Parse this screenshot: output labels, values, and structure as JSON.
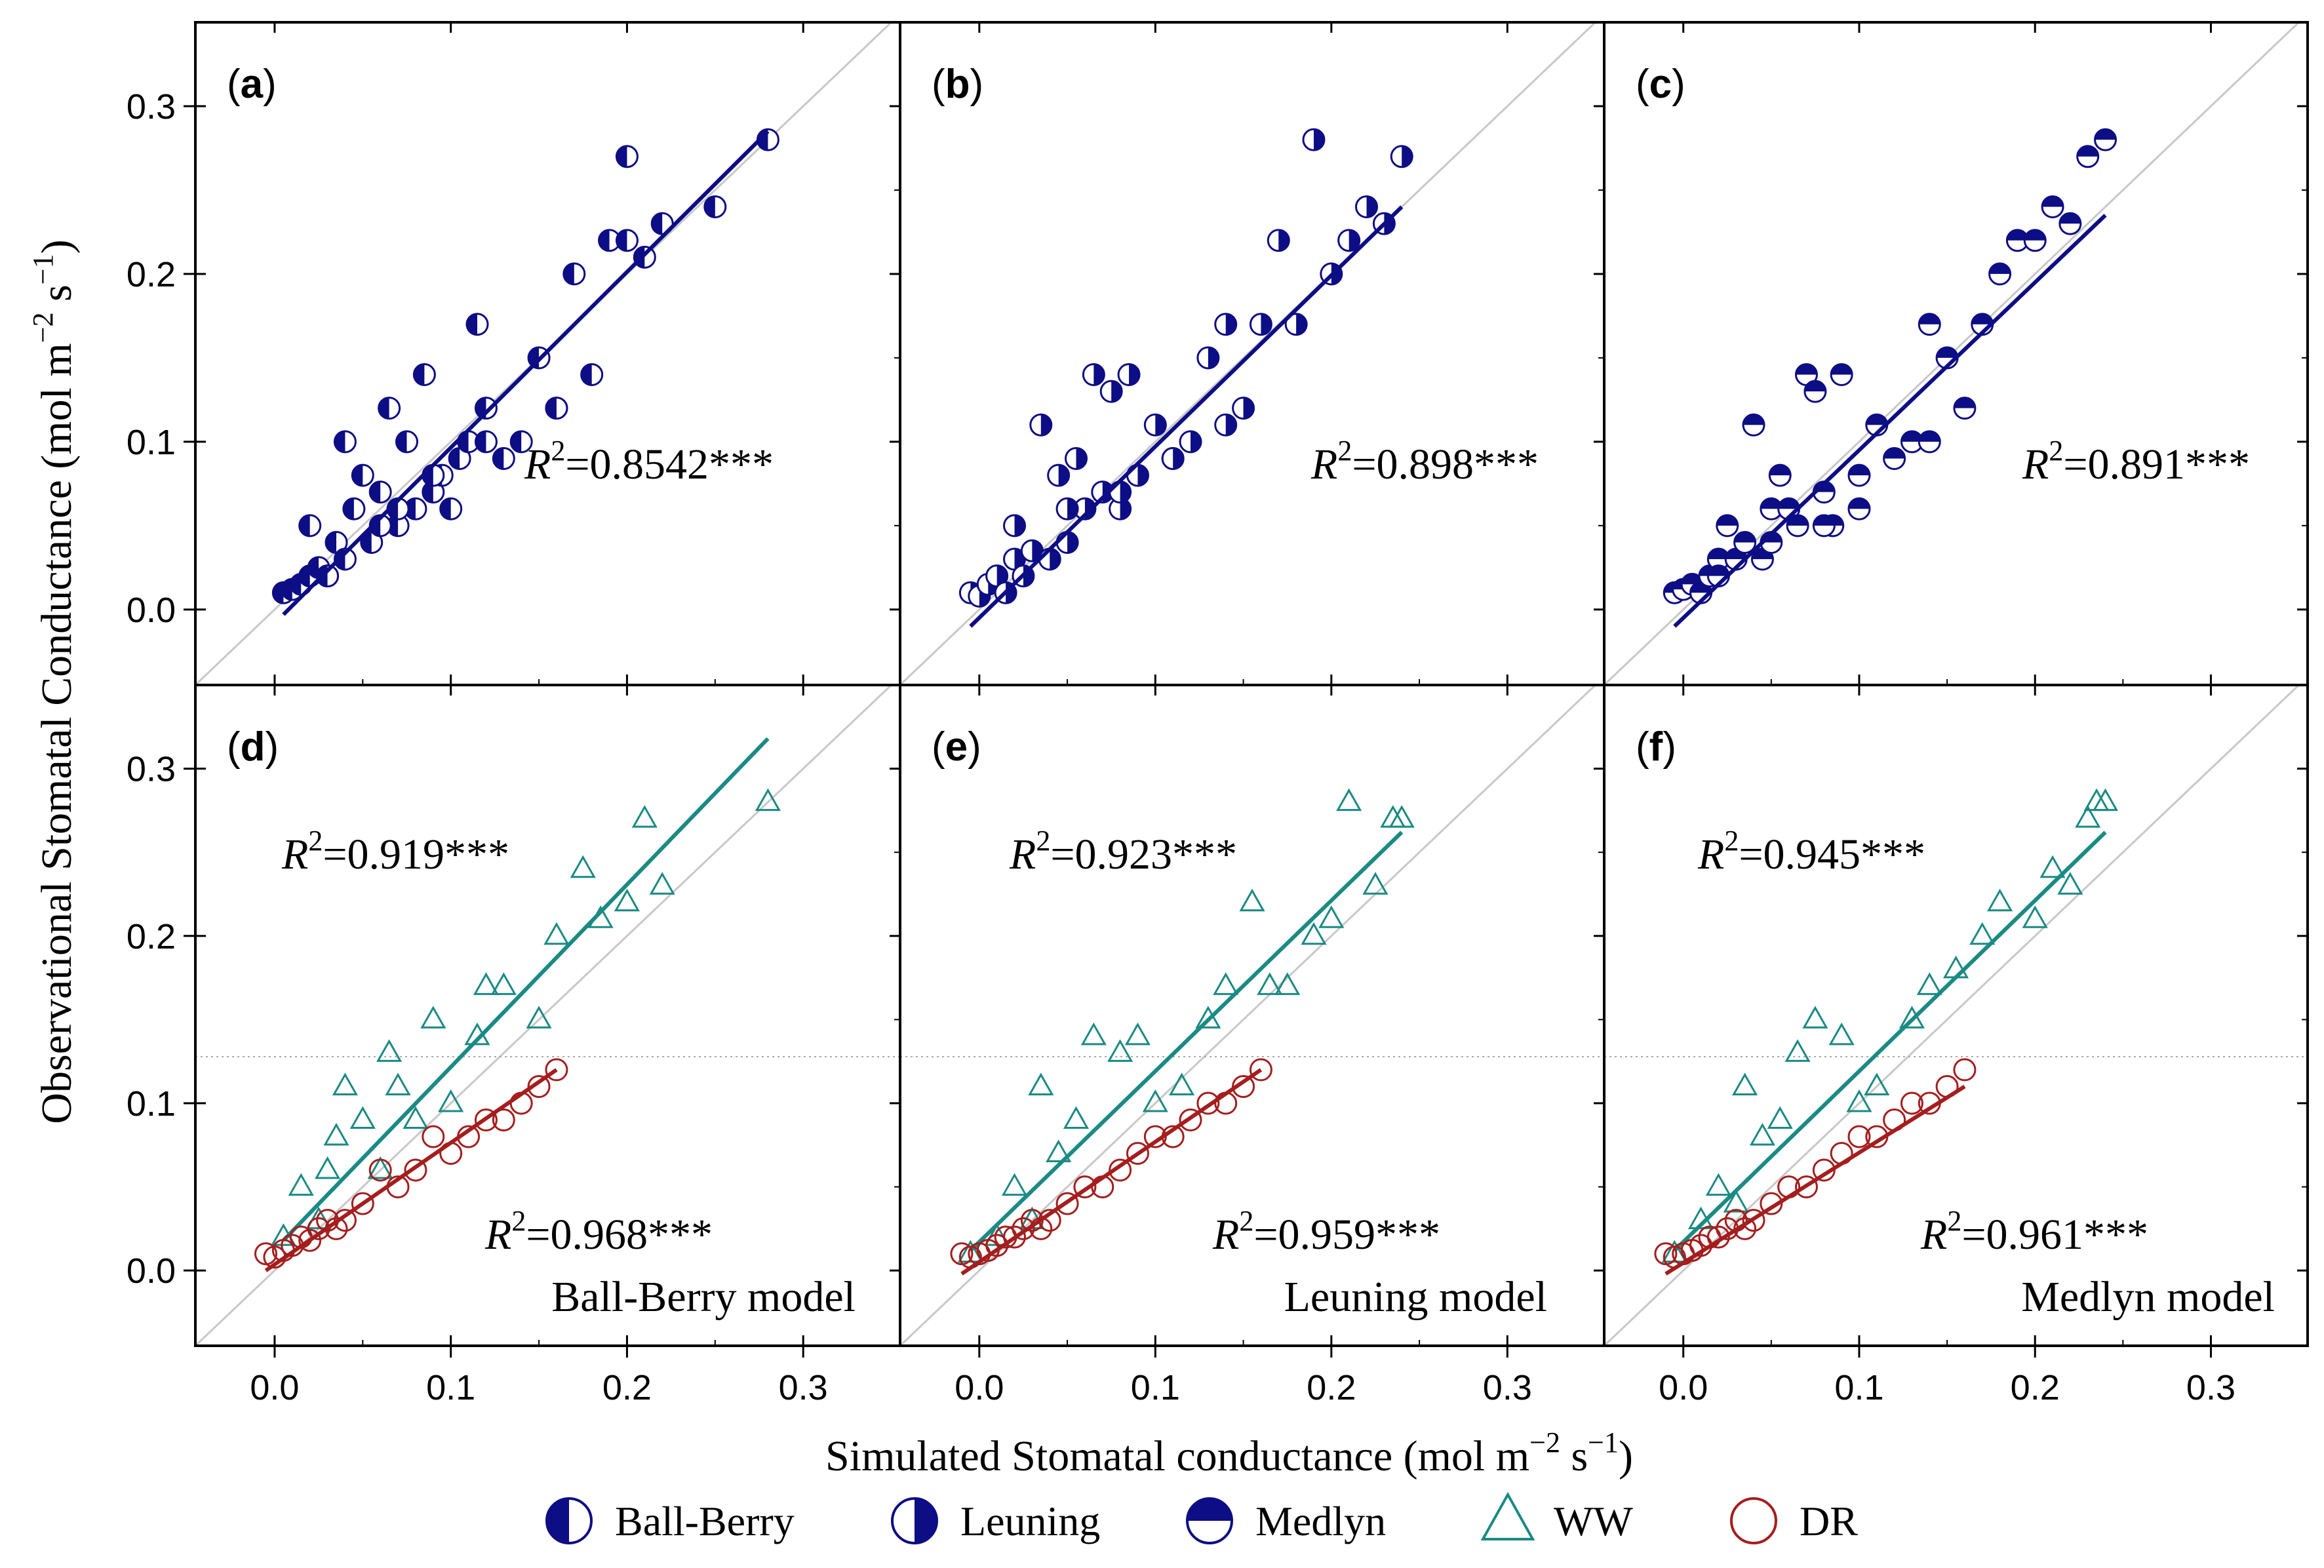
{
  "figure": {
    "y_axis_label_main": "Observational Stomatal Conductance (mol m",
    "y_axis_label_exp1": "−2",
    "y_axis_label_mid": " s",
    "y_axis_label_exp2": "−1",
    "y_axis_label_end": ")",
    "x_axis_label_main": "Simulated Stomatal conductance (mol m",
    "x_axis_label_exp1": "−2",
    "x_axis_label_mid": " s",
    "x_axis_label_exp2": "−1",
    "x_axis_label_end": ")",
    "x_tick_labels": [
      "0.0",
      "0.1",
      "0.2",
      "0.3"
    ],
    "y_tick_labels": [
      "0.0",
      "0.1",
      "0.2",
      "0.3"
    ],
    "legend": [
      {
        "label": "Ball-Berry",
        "marker": "circle-left-filled"
      },
      {
        "label": "Leuning",
        "marker": "circle-right-filled"
      },
      {
        "label": "Medlyn",
        "marker": "circle-top-filled"
      },
      {
        "label": "WW",
        "marker": "open-triangle"
      },
      {
        "label": "DR",
        "marker": "open-circle"
      }
    ],
    "colors": {
      "navy": "#0d0d85",
      "teal": "#1a8a84",
      "darkred": "#a51d1d",
      "one_to_one": "#c8c8c8",
      "frame": "#000000"
    }
  },
  "chart_data": [
    {
      "type": "scatter",
      "panel": "(a)",
      "marker": "circle-left-filled",
      "xlim": [
        -0.045,
        0.355
      ],
      "ylim": [
        -0.045,
        0.35
      ],
      "annotations": [
        {
          "text": "R",
          "sup": "2",
          "value": "=0.8542***",
          "color": "navy"
        }
      ],
      "series": [
        {
          "name": "all",
          "color": "navy",
          "fit": [
            -0.003,
            0.285
          ],
          "x": [
            0.005,
            0.01,
            0.015,
            0.02,
            0.025,
            0.03,
            0.02,
            0.035,
            0.04,
            0.045,
            0.05,
            0.055,
            0.06,
            0.065,
            0.07,
            0.075,
            0.08,
            0.085,
            0.09,
            0.095,
            0.1,
            0.105,
            0.11,
            0.115,
            0.12,
            0.13,
            0.14,
            0.15,
            0.16,
            0.17,
            0.18,
            0.19,
            0.2,
            0.21,
            0.22,
            0.25,
            0.28,
            0.03,
            0.04,
            0.06,
            0.07,
            0.09,
            0.12,
            0.16,
            0.2
          ],
          "y": [
            0.01,
            0.012,
            0.015,
            0.02,
            0.025,
            0.02,
            0.05,
            0.04,
            0.1,
            0.06,
            0.08,
            0.04,
            0.07,
            0.12,
            0.05,
            0.1,
            0.06,
            0.14,
            0.07,
            0.08,
            0.06,
            0.09,
            0.1,
            0.17,
            0.12,
            0.09,
            0.1,
            0.15,
            0.12,
            0.2,
            0.14,
            0.22,
            0.22,
            0.21,
            0.23,
            0.24,
            0.28,
            0.02,
            0.03,
            0.05,
            0.06,
            0.08,
            0.1,
            0.12,
            0.27
          ]
        }
      ]
    },
    {
      "type": "scatter",
      "panel": "(b)",
      "marker": "circle-right-filled",
      "xlim": [
        -0.045,
        0.355
      ],
      "ylim": [
        -0.045,
        0.35
      ],
      "annotations": [
        {
          "text": "R",
          "sup": "2",
          "value": "=0.898***",
          "color": "navy"
        }
      ],
      "series": [
        {
          "name": "all",
          "color": "navy",
          "fit": [
            -0.01,
            0.24
          ],
          "x": [
            -0.005,
            0.0,
            0.005,
            0.01,
            0.015,
            0.02,
            0.025,
            0.03,
            0.035,
            0.04,
            0.045,
            0.05,
            0.055,
            0.06,
            0.065,
            0.07,
            0.075,
            0.08,
            0.085,
            0.09,
            0.1,
            0.11,
            0.12,
            0.13,
            0.14,
            0.15,
            0.16,
            0.17,
            0.18,
            0.2,
            0.21,
            0.22,
            0.23,
            0.24,
            0.02,
            0.05,
            0.08,
            0.11,
            0.14,
            0.19
          ],
          "y": [
            0.01,
            0.008,
            0.015,
            0.02,
            0.01,
            0.03,
            0.02,
            0.035,
            0.11,
            0.03,
            0.08,
            0.04,
            0.09,
            0.06,
            0.14,
            0.07,
            0.13,
            0.06,
            0.14,
            0.08,
            0.11,
            0.09,
            0.1,
            0.15,
            0.17,
            0.12,
            0.17,
            0.22,
            0.17,
            0.2,
            0.22,
            0.24,
            0.23,
            0.27,
            0.05,
            0.06,
            0.07,
            0.09,
            0.11,
            0.28
          ]
        }
      ]
    },
    {
      "type": "scatter",
      "panel": "(c)",
      "marker": "circle-top-filled",
      "xlim": [
        -0.045,
        0.355
      ],
      "ylim": [
        -0.045,
        0.35
      ],
      "annotations": [
        {
          "text": "R",
          "sup": "2",
          "value": "=0.891***",
          "color": "navy"
        }
      ],
      "series": [
        {
          "name": "all",
          "color": "navy",
          "fit": [
            -0.01,
            0.235
          ],
          "x": [
            -0.005,
            0.0,
            0.005,
            0.01,
            0.015,
            0.02,
            0.025,
            0.03,
            0.035,
            0.04,
            0.045,
            0.05,
            0.055,
            0.06,
            0.065,
            0.07,
            0.075,
            0.08,
            0.085,
            0.09,
            0.1,
            0.11,
            0.12,
            0.13,
            0.14,
            0.15,
            0.16,
            0.17,
            0.18,
            0.19,
            0.2,
            0.21,
            0.22,
            0.23,
            0.24,
            0.02,
            0.05,
            0.08,
            0.1,
            0.14
          ],
          "y": [
            0.01,
            0.012,
            0.015,
            0.01,
            0.02,
            0.03,
            0.05,
            0.03,
            0.04,
            0.11,
            0.03,
            0.06,
            0.08,
            0.06,
            0.05,
            0.14,
            0.13,
            0.07,
            0.05,
            0.14,
            0.06,
            0.11,
            0.09,
            0.1,
            0.17,
            0.15,
            0.12,
            0.17,
            0.2,
            0.22,
            0.22,
            0.24,
            0.23,
            0.27,
            0.28,
            0.02,
            0.04,
            0.05,
            0.08,
            0.1
          ]
        }
      ]
    },
    {
      "type": "scatter",
      "panel": "(d)",
      "xlim": [
        -0.045,
        0.355
      ],
      "ylim": [
        -0.045,
        0.35
      ],
      "annotations": [
        {
          "text": "R",
          "sup": "2",
          "value": "=0.919***",
          "color": "teal"
        },
        {
          "text": "R",
          "sup": "2",
          "value": "=0.968***",
          "color": "darkred"
        },
        {
          "text": "Ball-Berry model"
        }
      ],
      "series": [
        {
          "name": "WW",
          "marker": "open-triangle",
          "color": "teal",
          "fit": [
            0.018,
            0.318
          ],
          "x": [
            0.005,
            0.015,
            0.025,
            0.03,
            0.035,
            0.04,
            0.05,
            0.06,
            0.065,
            0.07,
            0.08,
            0.09,
            0.1,
            0.115,
            0.12,
            0.13,
            0.15,
            0.16,
            0.175,
            0.185,
            0.2,
            0.21,
            0.22,
            0.28
          ],
          "y": [
            0.02,
            0.05,
            0.03,
            0.06,
            0.08,
            0.11,
            0.09,
            0.06,
            0.13,
            0.11,
            0.09,
            0.15,
            0.1,
            0.14,
            0.17,
            0.17,
            0.15,
            0.2,
            0.24,
            0.21,
            0.22,
            0.27,
            0.23,
            0.28
          ]
        },
        {
          "name": "DR",
          "marker": "open-circle",
          "color": "darkred",
          "fit": [
            0.0,
            0.12
          ],
          "x": [
            -0.005,
            0.0,
            0.005,
            0.01,
            0.015,
            0.02,
            0.025,
            0.03,
            0.035,
            0.04,
            0.05,
            0.06,
            0.07,
            0.08,
            0.09,
            0.1,
            0.11,
            0.12,
            0.13,
            0.14,
            0.15,
            0.16
          ],
          "y": [
            0.01,
            0.008,
            0.012,
            0.015,
            0.02,
            0.018,
            0.025,
            0.03,
            0.025,
            0.03,
            0.04,
            0.06,
            0.05,
            0.06,
            0.08,
            0.07,
            0.08,
            0.09,
            0.09,
            0.1,
            0.11,
            0.12
          ]
        }
      ]
    },
    {
      "type": "scatter",
      "panel": "(e)",
      "xlim": [
        -0.045,
        0.355
      ],
      "ylim": [
        -0.045,
        0.35
      ],
      "annotations": [
        {
          "text": "R",
          "sup": "2",
          "value": "=0.923***",
          "color": "teal"
        },
        {
          "text": "R",
          "sup": "2",
          "value": "=0.959***",
          "color": "darkred"
        },
        {
          "text": "Leuning model"
        }
      ],
      "series": [
        {
          "name": "WW",
          "marker": "open-triangle",
          "color": "teal",
          "fit": [
            0.012,
            0.262
          ],
          "x": [
            -0.005,
            0.01,
            0.02,
            0.03,
            0.035,
            0.045,
            0.055,
            0.065,
            0.08,
            0.09,
            0.1,
            0.115,
            0.13,
            0.14,
            0.155,
            0.165,
            0.175,
            0.19,
            0.2,
            0.21,
            0.225,
            0.235,
            0.24
          ],
          "y": [
            0.01,
            0.02,
            0.05,
            0.03,
            0.11,
            0.07,
            0.09,
            0.14,
            0.13,
            0.14,
            0.1,
            0.11,
            0.15,
            0.17,
            0.22,
            0.17,
            0.17,
            0.2,
            0.21,
            0.28,
            0.23,
            0.27,
            0.27
          ]
        },
        {
          "name": "DR",
          "marker": "open-circle",
          "color": "darkred",
          "fit": [
            -0.002,
            0.12
          ],
          "x": [
            -0.01,
            -0.005,
            0.0,
            0.005,
            0.01,
            0.015,
            0.02,
            0.025,
            0.03,
            0.035,
            0.04,
            0.05,
            0.06,
            0.07,
            0.08,
            0.09,
            0.1,
            0.11,
            0.12,
            0.13,
            0.14,
            0.15,
            0.16
          ],
          "y": [
            0.01,
            0.008,
            0.01,
            0.012,
            0.015,
            0.02,
            0.02,
            0.025,
            0.03,
            0.025,
            0.03,
            0.04,
            0.05,
            0.05,
            0.06,
            0.07,
            0.08,
            0.08,
            0.09,
            0.1,
            0.1,
            0.11,
            0.12
          ]
        }
      ]
    },
    {
      "type": "scatter",
      "panel": "(f)",
      "xlim": [
        -0.045,
        0.355
      ],
      "ylim": [
        -0.045,
        0.35
      ],
      "annotations": [
        {
          "text": "R",
          "sup": "2",
          "value": "=0.945***",
          "color": "teal"
        },
        {
          "text": "R",
          "sup": "2",
          "value": "=0.961***",
          "color": "darkred"
        },
        {
          "text": "Medlyn model"
        }
      ],
      "series": [
        {
          "name": "WW",
          "marker": "open-triangle",
          "color": "teal",
          "fit": [
            0.012,
            0.262
          ],
          "x": [
            -0.005,
            0.01,
            0.02,
            0.03,
            0.035,
            0.045,
            0.055,
            0.065,
            0.075,
            0.09,
            0.1,
            0.11,
            0.13,
            0.14,
            0.155,
            0.17,
            0.18,
            0.2,
            0.21,
            0.22,
            0.23,
            0.235,
            0.24
          ],
          "y": [
            0.01,
            0.03,
            0.05,
            0.04,
            0.11,
            0.08,
            0.09,
            0.13,
            0.15,
            0.14,
            0.1,
            0.11,
            0.15,
            0.17,
            0.18,
            0.2,
            0.22,
            0.21,
            0.24,
            0.23,
            0.27,
            0.28,
            0.28
          ]
        },
        {
          "name": "DR",
          "marker": "open-circle",
          "color": "darkred",
          "fit": [
            -0.002,
            0.11
          ],
          "x": [
            -0.01,
            -0.005,
            0.0,
            0.005,
            0.01,
            0.015,
            0.02,
            0.025,
            0.03,
            0.035,
            0.04,
            0.05,
            0.06,
            0.07,
            0.08,
            0.09,
            0.1,
            0.11,
            0.12,
            0.13,
            0.14,
            0.15,
            0.16
          ],
          "y": [
            0.01,
            0.008,
            0.01,
            0.012,
            0.015,
            0.02,
            0.02,
            0.025,
            0.03,
            0.025,
            0.03,
            0.04,
            0.05,
            0.05,
            0.06,
            0.07,
            0.08,
            0.08,
            0.09,
            0.1,
            0.1,
            0.11,
            0.12
          ]
        }
      ]
    }
  ]
}
